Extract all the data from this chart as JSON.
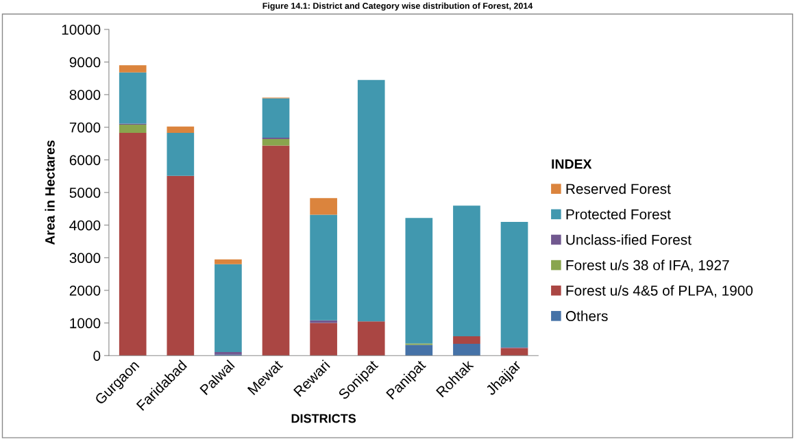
{
  "chart_data": {
    "type": "bar",
    "stacked": true,
    "title": "Figure 14.1: District and Category wise distribution of Forest, 2014",
    "xlabel": "DISTRICTS",
    "ylabel": "Area in Hectares",
    "legend_title": "INDEX",
    "legend": "right",
    "categories": [
      "Gurgaon",
      "Faridabad",
      "Palwal",
      "Mewat",
      "Rewari",
      "Sonipat",
      "Panipat",
      "Rohtak",
      "Jhajjar"
    ],
    "series": [
      {
        "name": "Others",
        "color": "#4572a7",
        "values": [
          0,
          0,
          30,
          0,
          0,
          0,
          330,
          360,
          0
        ]
      },
      {
        "name": "Forest u/s 4&5 of PLPA, 1900",
        "color": "#aa4643",
        "values": [
          6830,
          5510,
          0,
          6440,
          1000,
          1050,
          0,
          230,
          230
        ]
      },
      {
        "name": "Forest u/s 38 of IFA, 1927",
        "color": "#89a54e",
        "values": [
          250,
          0,
          0,
          200,
          0,
          0,
          40,
          0,
          0
        ]
      },
      {
        "name": "Unclass-ified Forest",
        "color": "#71588f",
        "values": [
          30,
          0,
          80,
          40,
          80,
          0,
          0,
          0,
          20
        ]
      },
      {
        "name": "Protected Forest",
        "color": "#4198af",
        "values": [
          1570,
          1320,
          2690,
          1210,
          3240,
          7400,
          3850,
          4010,
          3850
        ]
      },
      {
        "name": "Reserved Forest",
        "color": "#db843d",
        "values": [
          220,
          190,
          150,
          20,
          510,
          0,
          0,
          0,
          0
        ]
      }
    ],
    "ylim": [
      0,
      10000
    ],
    "yticks": [
      0,
      1000,
      2000,
      3000,
      4000,
      5000,
      6000,
      7000,
      8000,
      9000,
      10000
    ],
    "grid": false
  }
}
